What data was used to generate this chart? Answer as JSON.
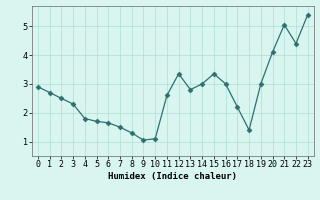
{
  "x": [
    0,
    1,
    2,
    3,
    4,
    5,
    6,
    7,
    8,
    9,
    10,
    11,
    12,
    13,
    14,
    15,
    16,
    17,
    18,
    19,
    20,
    21,
    22,
    23
  ],
  "y": [
    2.9,
    2.7,
    2.5,
    2.3,
    1.8,
    1.7,
    1.65,
    1.5,
    1.3,
    1.05,
    1.1,
    2.6,
    3.35,
    2.8,
    3.0,
    3.35,
    3.0,
    2.2,
    1.4,
    3.0,
    4.1,
    5.05,
    4.4,
    5.4
  ],
  "line_color": "#2e7070",
  "marker": "D",
  "marker_size": 2.5,
  "bg_color": "#d9f5f0",
  "grid_color": "#b0ddd8",
  "xlabel": "Humidex (Indice chaleur)",
  "xlim": [
    -0.5,
    23.5
  ],
  "ylim": [
    0.5,
    5.7
  ],
  "yticks": [
    1,
    2,
    3,
    4,
    5
  ],
  "xticks": [
    0,
    1,
    2,
    3,
    4,
    5,
    6,
    7,
    8,
    9,
    10,
    11,
    12,
    13,
    14,
    15,
    16,
    17,
    18,
    19,
    20,
    21,
    22,
    23
  ],
  "xlabel_fontsize": 6.5,
  "tick_fontsize": 6.0,
  "linewidth": 0.9
}
